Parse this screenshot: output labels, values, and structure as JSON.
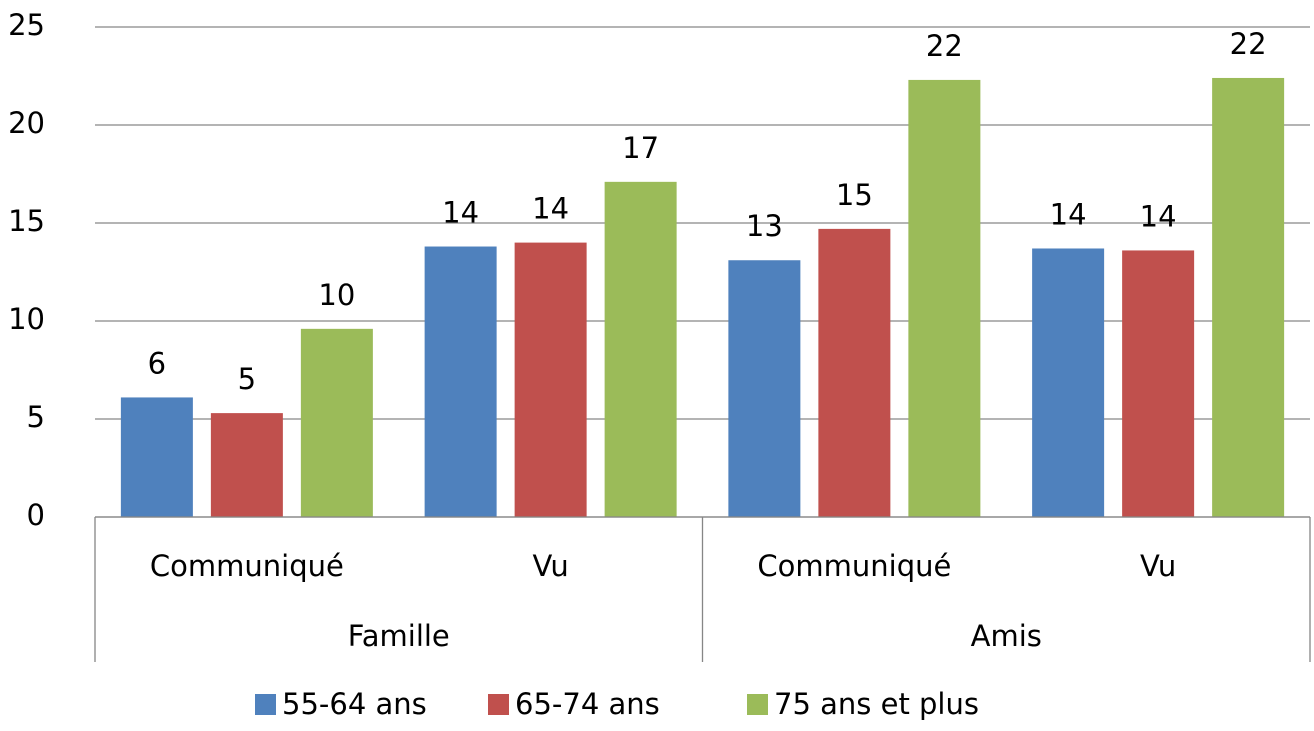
{
  "chart_data": {
    "type": "bar",
    "groups": [
      {
        "name": "Famille",
        "categories": [
          "Communiqué",
          "Vu"
        ]
      },
      {
        "name": "Amis",
        "categories": [
          "Communiqué",
          "Vu"
        ]
      }
    ],
    "series": [
      {
        "name": "55-64 ans",
        "color": "#4f81bd",
        "values": [
          6.1,
          13.8,
          13.1,
          13.7
        ],
        "value_labels": [
          "6",
          "14",
          "13",
          "14"
        ]
      },
      {
        "name": "65-74 ans",
        "color": "#c0504d",
        "values": [
          5.3,
          14.0,
          14.7,
          13.6
        ],
        "value_labels": [
          "5",
          "14",
          "15",
          "14"
        ]
      },
      {
        "name": "75 ans et plus",
        "color": "#9bbb59",
        "values": [
          9.6,
          17.1,
          22.3,
          22.4
        ],
        "value_labels": [
          "10",
          "17",
          "22",
          "22"
        ]
      }
    ],
    "ylim": [
      0,
      25
    ],
    "yticks": [
      0,
      5,
      10,
      15,
      20,
      25
    ],
    "grid": true,
    "legend": "bottom"
  }
}
